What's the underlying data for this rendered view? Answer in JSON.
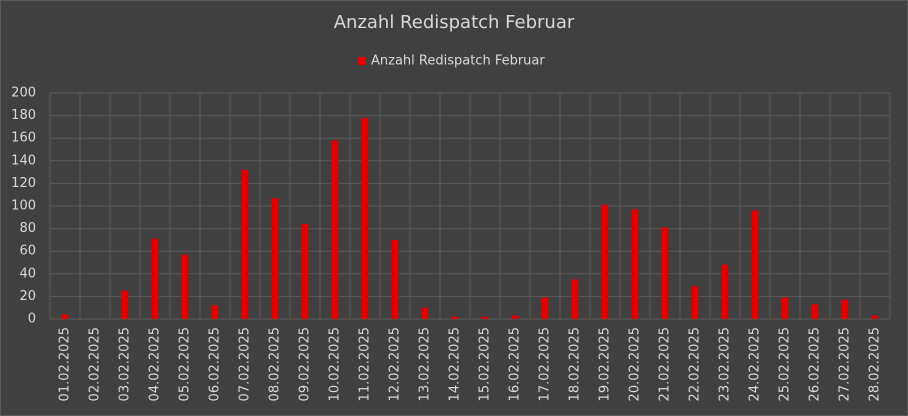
{
  "chart_data": {
    "type": "bar",
    "title": "Anzahl Redispatch Februar",
    "categories": [
      "01.02.2025",
      "02.02.2025",
      "03.02.2025",
      "04.02.2025",
      "05.02.2025",
      "06.02.2025",
      "07.02.2025",
      "08.02.2025",
      "09.02.2025",
      "10.02.2025",
      "11.02.2025",
      "12.02.2025",
      "13.02.2025",
      "14.02.2025",
      "15.02.2025",
      "16.02.2025",
      "17.02.2025",
      "18.02.2025",
      "19.02.2025",
      "20.02.2025",
      "21.02.2025",
      "22.02.2025",
      "23.02.2025",
      "24.02.2025",
      "25.02.2025",
      "26.02.2025",
      "27.02.2025",
      "28.02.2025"
    ],
    "series": [
      {
        "name": "Anzahl Redispatch Februar",
        "color": "#e00000",
        "values": [
          4,
          0,
          25,
          71,
          57,
          12,
          132,
          107,
          84,
          158,
          178,
          70,
          10,
          2,
          2,
          3,
          19,
          35,
          101,
          97,
          81,
          29,
          48,
          96,
          19,
          13,
          17,
          3
        ]
      }
    ],
    "ylim": [
      0,
      200
    ],
    "yticks": [
      0,
      20,
      40,
      60,
      80,
      100,
      120,
      140,
      160,
      180,
      200
    ],
    "grid": true,
    "legend": "top"
  }
}
